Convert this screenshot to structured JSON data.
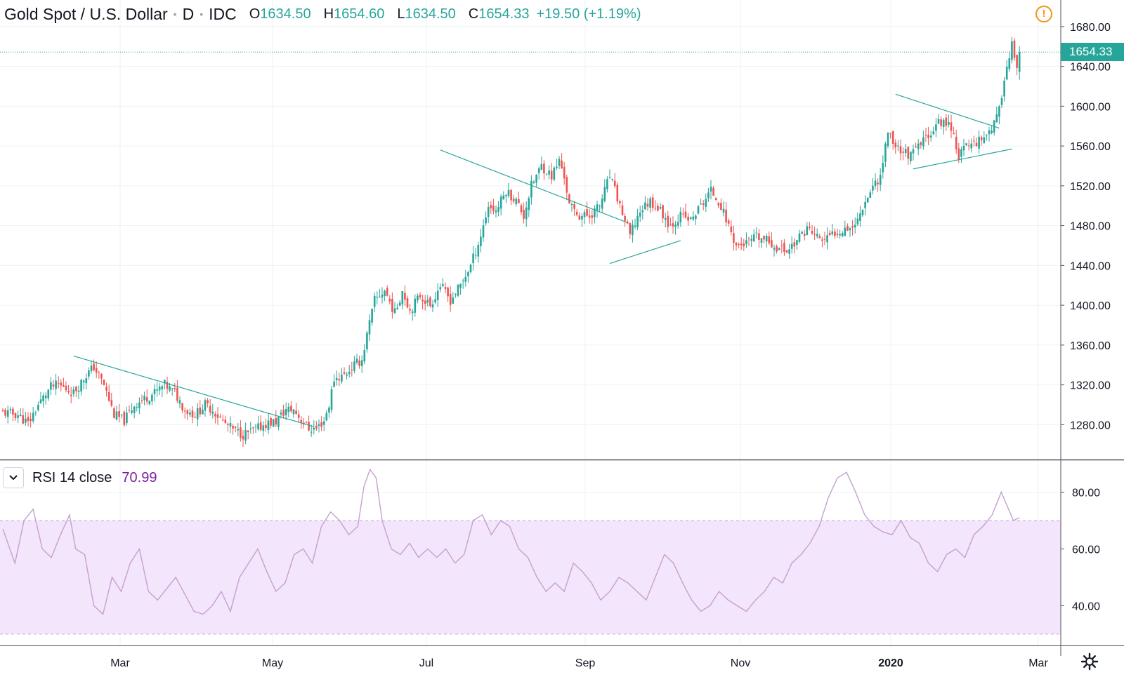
{
  "header": {
    "symbol": "Gold Spot / U.S. Dollar",
    "interval": "D",
    "exchange": "IDC",
    "open_label": "O",
    "open_value": "1634.50",
    "high_label": "H",
    "high_value": "1654.60",
    "low_label": "L",
    "low_value": "1634.50",
    "close_label": "C",
    "close_value": "1654.33",
    "change": "+19.50 (+1.19%)",
    "alert_icon": "exclamation-circle-icon"
  },
  "price_tag": "1654.33",
  "rsi": {
    "label": "RSI 14 close",
    "value": "70.99",
    "toggle_icon": "chevron-down-icon"
  },
  "settings_icon": "gear-icon",
  "colors": {
    "up": "#26a69a",
    "down": "#ef5350",
    "trendline": "#26a69a",
    "rsi_line": "#c6a0cf",
    "rsi_band": "#f3e5fc",
    "alert": "#f7931a"
  },
  "chart_data": [
    {
      "type": "candlestick",
      "title": "Gold Spot / U.S. Dollar",
      "x_labels": [
        "Mar",
        "May",
        "Jul",
        "Sep",
        "Nov",
        "2020",
        "Mar"
      ],
      "y_ticks": [
        1280,
        1320,
        1360,
        1400,
        1440,
        1480,
        1520,
        1560,
        1600,
        1640,
        1680
      ],
      "ylim": [
        1245,
        1706
      ],
      "last_price": 1654.33,
      "grid": true,
      "close_anchors": [
        [
          0,
          1292
        ],
        [
          6,
          1290
        ],
        [
          10,
          1281
        ],
        [
          14,
          1300
        ],
        [
          19,
          1318
        ],
        [
          22,
          1320
        ],
        [
          28,
          1312
        ],
        [
          33,
          1330
        ],
        [
          36,
          1338
        ],
        [
          40,
          1320
        ],
        [
          44,
          1290
        ],
        [
          48,
          1284
        ],
        [
          52,
          1300
        ],
        [
          56,
          1306
        ],
        [
          60,
          1312
        ],
        [
          64,
          1320
        ],
        [
          68,
          1312
        ],
        [
          72,
          1295
        ],
        [
          76,
          1290
        ],
        [
          80,
          1300
        ],
        [
          83,
          1295
        ],
        [
          87,
          1283
        ],
        [
          91,
          1275
        ],
        [
          95,
          1270
        ],
        [
          100,
          1275
        ],
        [
          104,
          1281
        ],
        [
          108,
          1283
        ],
        [
          112,
          1295
        ],
        [
          115,
          1295
        ],
        [
          118,
          1285
        ],
        [
          121,
          1276
        ],
        [
          124,
          1276
        ],
        [
          127,
          1284
        ],
        [
          129,
          1300
        ],
        [
          131,
          1326
        ],
        [
          135,
          1330
        ],
        [
          139,
          1340
        ],
        [
          142,
          1345
        ],
        [
          144,
          1370
        ],
        [
          147,
          1405
        ],
        [
          151,
          1415
        ],
        [
          155,
          1392
        ],
        [
          158,
          1415
        ],
        [
          161,
          1395
        ],
        [
          165,
          1410
        ],
        [
          169,
          1400
        ],
        [
          173,
          1420
        ],
        [
          177,
          1405
        ],
        [
          181,
          1420
        ],
        [
          185,
          1440
        ],
        [
          189,
          1470
        ],
        [
          192,
          1500
        ],
        [
          195,
          1495
        ],
        [
          199,
          1515
        ],
        [
          203,
          1505
        ],
        [
          206,
          1490
        ],
        [
          209,
          1520
        ],
        [
          213,
          1540
        ],
        [
          217,
          1530
        ],
        [
          220,
          1545
        ],
        [
          222,
          1530
        ],
        [
          224,
          1500
        ],
        [
          228,
          1490
        ],
        [
          232,
          1490
        ],
        [
          236,
          1500
        ],
        [
          240,
          1530
        ],
        [
          244,
          1500
        ],
        [
          248,
          1470
        ],
        [
          252,
          1495
        ],
        [
          256,
          1505
        ],
        [
          260,
          1495
        ],
        [
          264,
          1480
        ],
        [
          268,
          1490
        ],
        [
          272,
          1485
        ],
        [
          276,
          1500
        ],
        [
          280,
          1515
        ],
        [
          283,
          1505
        ],
        [
          287,
          1480
        ],
        [
          290,
          1460
        ],
        [
          294,
          1462
        ],
        [
          298,
          1468
        ],
        [
          302,
          1465
        ],
        [
          306,
          1458
        ],
        [
          310,
          1455
        ],
        [
          314,
          1465
        ],
        [
          318,
          1478
        ],
        [
          321,
          1470
        ],
        [
          325,
          1465
        ],
        [
          329,
          1473
        ],
        [
          333,
          1478
        ],
        [
          337,
          1480
        ],
        [
          340,
          1500
        ],
        [
          344,
          1520
        ],
        [
          347,
          1530
        ],
        [
          350,
          1575
        ],
        [
          353,
          1560
        ],
        [
          356,
          1555
        ],
        [
          359,
          1550
        ],
        [
          363,
          1562
        ],
        [
          367,
          1575
        ],
        [
          371,
          1585
        ],
        [
          375,
          1580
        ],
        [
          378,
          1550
        ],
        [
          381,
          1560
        ],
        [
          385,
          1565
        ],
        [
          388,
          1570
        ],
        [
          392,
          1582
        ],
        [
          394,
          1595
        ],
        [
          396,
          1630
        ],
        [
          398,
          1648
        ],
        [
          399,
          1662
        ],
        [
          401,
          1634
        ],
        [
          402,
          1654
        ]
      ],
      "trendlines": [
        {
          "from": [
            28,
            1349
          ],
          "to": [
            123,
            1278
          ]
        },
        {
          "from": [
            173,
            1556
          ],
          "to": [
            247,
            1483
          ]
        },
        {
          "from": [
            240,
            1442
          ],
          "to": [
            268,
            1465
          ]
        },
        {
          "from": [
            353,
            1612
          ],
          "to": [
            394,
            1578
          ]
        },
        {
          "from": [
            360,
            1537
          ],
          "to": [
            399,
            1557
          ]
        }
      ]
    },
    {
      "type": "line",
      "title": "RSI 14 close",
      "y_ticks": [
        40,
        60,
        80
      ],
      "ylim": [
        26,
        91
      ],
      "band": [
        30,
        70
      ],
      "last_value": 70.99,
      "x_range": [
        0,
        402
      ],
      "anchors": [
        [
          0,
          67
        ],
        [
          4,
          55
        ],
        [
          7,
          70
        ],
        [
          10,
          74
        ],
        [
          13,
          60
        ],
        [
          16,
          57
        ],
        [
          19,
          65
        ],
        [
          22,
          72
        ],
        [
          24,
          60
        ],
        [
          27,
          58
        ],
        [
          30,
          40
        ],
        [
          33,
          37
        ],
        [
          36,
          50
        ],
        [
          39,
          45
        ],
        [
          42,
          55
        ],
        [
          45,
          60
        ],
        [
          48,
          45
        ],
        [
          51,
          42
        ],
        [
          54,
          46
        ],
        [
          57,
          50
        ],
        [
          60,
          44
        ],
        [
          63,
          38
        ],
        [
          66,
          37
        ],
        [
          69,
          40
        ],
        [
          72,
          45
        ],
        [
          75,
          38
        ],
        [
          78,
          50
        ],
        [
          81,
          55
        ],
        [
          84,
          60
        ],
        [
          87,
          52
        ],
        [
          90,
          45
        ],
        [
          93,
          48
        ],
        [
          96,
          58
        ],
        [
          99,
          60
        ],
        [
          102,
          55
        ],
        [
          105,
          68
        ],
        [
          108,
          73
        ],
        [
          111,
          70
        ],
        [
          114,
          65
        ],
        [
          117,
          68
        ],
        [
          119,
          82
        ],
        [
          121,
          88
        ],
        [
          123,
          85
        ],
        [
          125,
          70
        ],
        [
          128,
          60
        ],
        [
          131,
          58
        ],
        [
          134,
          62
        ],
        [
          137,
          57
        ],
        [
          140,
          60
        ],
        [
          143,
          57
        ],
        [
          146,
          60
        ],
        [
          149,
          55
        ],
        [
          152,
          58
        ],
        [
          155,
          70
        ],
        [
          158,
          72
        ],
        [
          161,
          65
        ],
        [
          164,
          70
        ],
        [
          167,
          68
        ],
        [
          170,
          60
        ],
        [
          173,
          57
        ],
        [
          176,
          50
        ],
        [
          179,
          45
        ],
        [
          182,
          48
        ],
        [
          185,
          45
        ],
        [
          188,
          55
        ],
        [
          191,
          52
        ],
        [
          194,
          48
        ],
        [
          197,
          42
        ],
        [
          200,
          45
        ],
        [
          203,
          50
        ],
        [
          206,
          48
        ],
        [
          209,
          45
        ],
        [
          212,
          42
        ],
        [
          215,
          50
        ],
        [
          218,
          58
        ],
        [
          221,
          55
        ],
        [
          224,
          48
        ],
        [
          227,
          42
        ],
        [
          230,
          38
        ],
        [
          233,
          40
        ],
        [
          236,
          45
        ],
        [
          239,
          42
        ],
        [
          242,
          40
        ],
        [
          245,
          38
        ],
        [
          248,
          42
        ],
        [
          251,
          45
        ],
        [
          254,
          50
        ],
        [
          257,
          48
        ],
        [
          260,
          55
        ],
        [
          263,
          58
        ],
        [
          266,
          62
        ],
        [
          269,
          68
        ],
        [
          272,
          78
        ],
        [
          275,
          85
        ],
        [
          278,
          87
        ],
        [
          281,
          80
        ],
        [
          284,
          72
        ],
        [
          287,
          68
        ],
        [
          290,
          66
        ],
        [
          293,
          65
        ],
        [
          296,
          70
        ],
        [
          299,
          64
        ],
        [
          302,
          62
        ],
        [
          305,
          55
        ],
        [
          308,
          52
        ],
        [
          311,
          58
        ],
        [
          314,
          60
        ],
        [
          317,
          57
        ],
        [
          320,
          65
        ],
        [
          323,
          68
        ],
        [
          326,
          72
        ],
        [
          329,
          80
        ],
        [
          331,
          75
        ],
        [
          333,
          70
        ],
        [
          335,
          71
        ]
      ]
    }
  ]
}
